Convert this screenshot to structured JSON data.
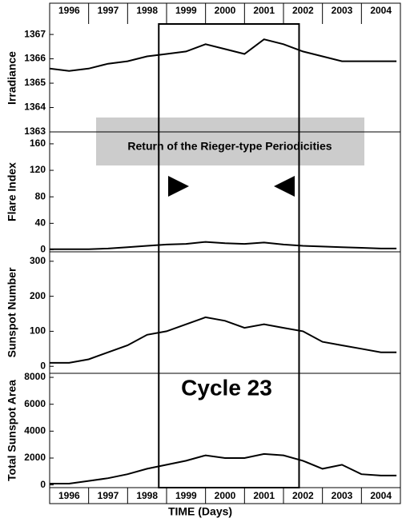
{
  "figure": {
    "xlabel": "TIME (Days)",
    "xlim": [
      1996,
      2005
    ],
    "xticks": [
      {
        "value": 1996.5,
        "label": "1996"
      },
      {
        "value": 1997.5,
        "label": "1997"
      },
      {
        "value": 1998.5,
        "label": "1998"
      },
      {
        "value": 1999.5,
        "label": "1999"
      },
      {
        "value": 2000.5,
        "label": "2000"
      },
      {
        "value": 2001.5,
        "label": "2001"
      },
      {
        "value": 2002.5,
        "label": "2002"
      },
      {
        "value": 2003.5,
        "label": "2003"
      },
      {
        "value": 2004.5,
        "label": "2004"
      }
    ],
    "highlight": [
      1998.8,
      2002.4
    ],
    "annotations": [
      "Return of the Rieger-type Periodicities",
      "Cycle 23"
    ]
  },
  "chart_data": [
    {
      "type": "line",
      "ylabel": "Irradiance",
      "color": "#000000",
      "x": [
        1996,
        1996.5,
        1997,
        1997.5,
        1998,
        1998.5,
        1999,
        1999.5,
        2000,
        2000.5,
        2001,
        2001.5,
        2002,
        2002.5,
        2003,
        2003.5,
        2004,
        2004.5,
        2004.9
      ],
      "values": [
        1365.6,
        1365.5,
        1365.6,
        1365.8,
        1365.9,
        1366.1,
        1366.2,
        1366.3,
        1366.6,
        1366.4,
        1366.2,
        1366.8,
        1366.6,
        1366.3,
        1366.1,
        1365.9,
        1365.9,
        1365.9,
        1365.9
      ],
      "ylim": [
        1363,
        1367.43
      ],
      "yticks": [
        1363,
        1364,
        1365,
        1366,
        1367
      ]
    },
    {
      "type": "line",
      "ylabel": "Flare Index",
      "color": "#000000",
      "x": [
        1996,
        1996.5,
        1997,
        1997.5,
        1998,
        1998.5,
        1999,
        1999.5,
        2000,
        2000.5,
        2001,
        2001.5,
        2002,
        2002.5,
        2003,
        2003.5,
        2004,
        2004.5,
        2004.9
      ],
      "values": [
        1,
        1,
        1,
        2,
        4,
        6,
        8,
        9,
        12,
        10,
        9,
        11,
        8,
        6,
        5,
        4,
        3,
        2,
        2
      ],
      "ylim": [
        -3,
        178
      ],
      "yticks": [
        0,
        40,
        80,
        120,
        160
      ]
    },
    {
      "type": "line",
      "ylabel": "Sunspot Number",
      "color": "#000000",
      "x": [
        1996,
        1996.5,
        1997,
        1997.5,
        1998,
        1998.5,
        1999,
        1999.5,
        2000,
        2000.5,
        2001,
        2001.5,
        2002,
        2002.5,
        2003,
        2003.5,
        2004,
        2004.5,
        2004.9
      ],
      "values": [
        10,
        10,
        20,
        40,
        60,
        90,
        100,
        120,
        140,
        130,
        110,
        120,
        110,
        100,
        70,
        60,
        50,
        40,
        40
      ],
      "ylim": [
        -20,
        327
      ],
      "yticks": [
        0,
        100,
        200,
        300
      ]
    },
    {
      "type": "line",
      "ylabel": "Total Sunspot Area",
      "color": "#000000",
      "x": [
        1996,
        1996.5,
        1997,
        1997.5,
        1998,
        1998.5,
        1999,
        1999.5,
        2000,
        2000.5,
        2001,
        2001.5,
        2002,
        2002.5,
        2003,
        2003.5,
        2004,
        2004.5,
        2004.9
      ],
      "values": [
        100,
        100,
        300,
        500,
        800,
        1200,
        1500,
        1800,
        2200,
        2000,
        2000,
        2300,
        2200,
        1800,
        1200,
        1500,
        800,
        700,
        700
      ],
      "ylim": [
        -200,
        8300
      ],
      "yticks": [
        0,
        2000,
        4000,
        6000,
        8000
      ]
    }
  ]
}
